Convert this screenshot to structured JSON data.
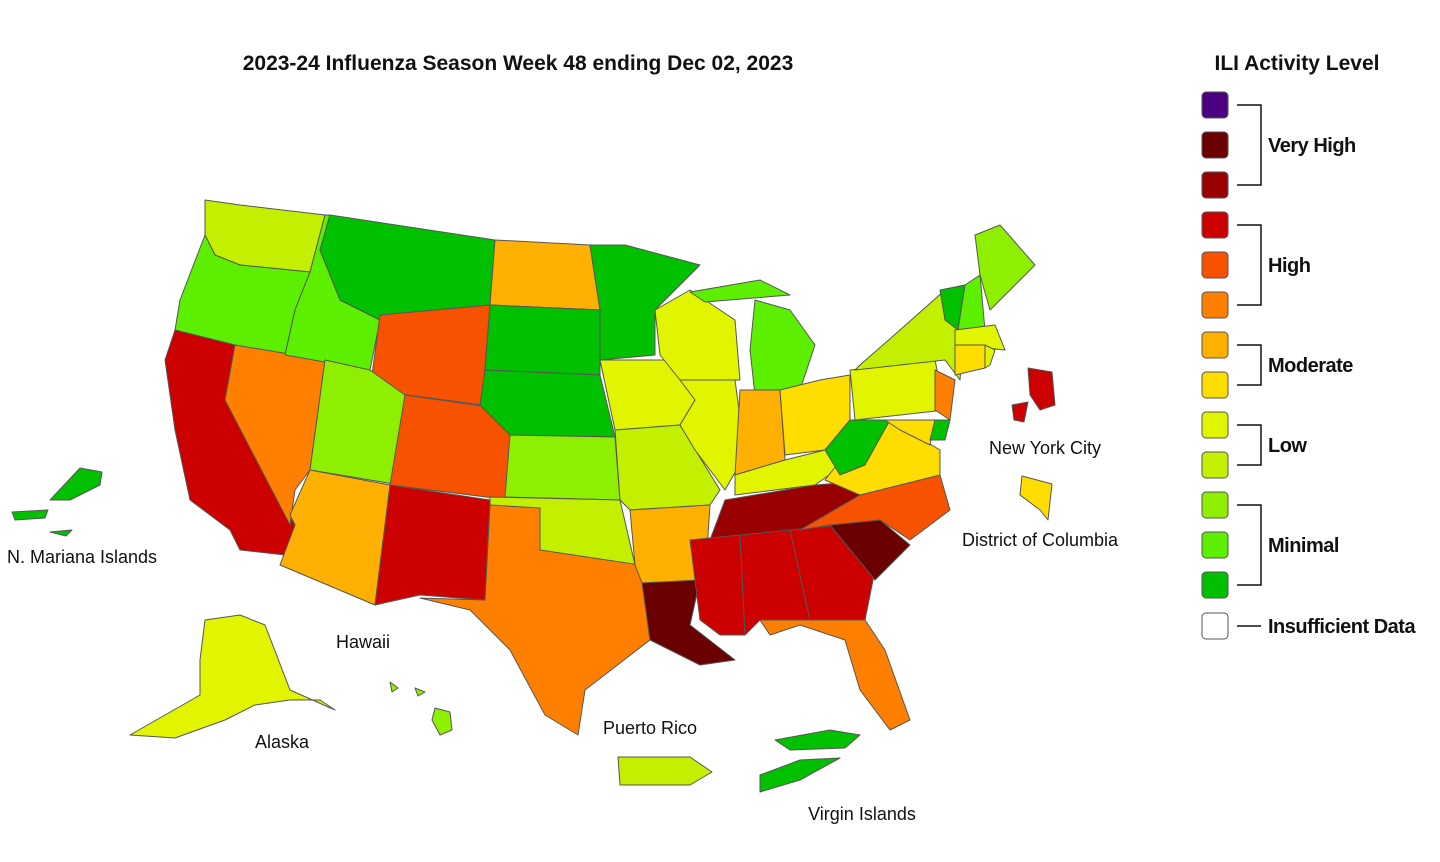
{
  "header": {
    "title": "2023-24 Influenza Season Week 48 ending Dec 02, 2023"
  },
  "legend": {
    "title": "ILI Activity Level",
    "groups": [
      {
        "label": "Very High",
        "colors": [
          "#4b0082",
          "#6b0000",
          "#990000"
        ]
      },
      {
        "label": "High",
        "colors": [
          "#cc0000",
          "#f75200",
          "#ff8000"
        ]
      },
      {
        "label": "Moderate",
        "colors": [
          "#ffb000",
          "#ffdd00"
        ]
      },
      {
        "label": "Low",
        "colors": [
          "#e2f500",
          "#c3f000"
        ]
      },
      {
        "label": "Minimal",
        "colors": [
          "#8ef000",
          "#5cf000",
          "#00c000"
        ]
      }
    ],
    "insufficient": {
      "label": "Insufficient Data",
      "color": "#ffffff"
    }
  },
  "map": {
    "labels": [
      "N. Mariana Islands",
      "Hawaii",
      "Alaska",
      "Puerto Rico",
      "Virgin Islands",
      "New York City",
      "District of Columbia"
    ]
  }
}
